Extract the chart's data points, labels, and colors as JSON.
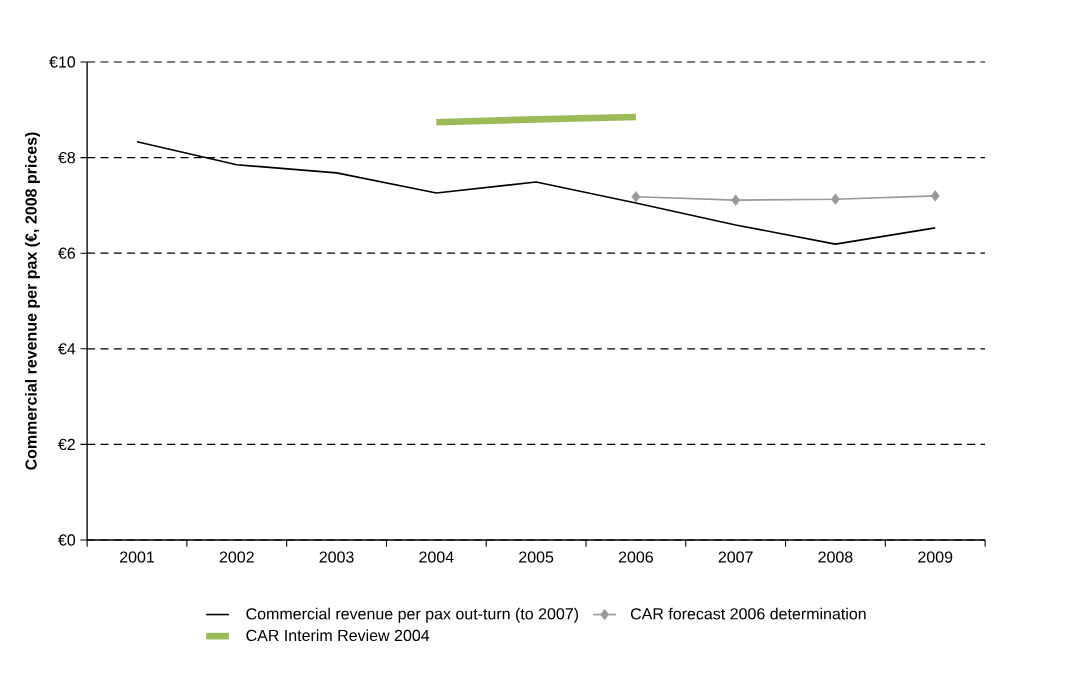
{
  "chart_data": {
    "type": "line",
    "ylabel": "Commercial revenue per pax (€, 2008 prices)",
    "categories": [
      "2001",
      "2002",
      "2003",
      "2004",
      "2005",
      "2006",
      "2007",
      "2008",
      "2009"
    ],
    "series": [
      {
        "name": "Commercial revenue per pax out-turn (to 2007)",
        "color": "#000000",
        "marker": "none",
        "values": [
          8.33,
          7.85,
          7.68,
          7.26,
          7.49,
          7.05,
          6.59,
          6.19,
          6.53
        ]
      },
      {
        "name": "CAR forecast 2006 determination",
        "color": "#999999",
        "marker": "diamond",
        "values": [
          null,
          null,
          null,
          null,
          null,
          7.18,
          7.11,
          7.13,
          7.2
        ]
      },
      {
        "name": "CAR Interim Review 2004",
        "color": "#9bbb59",
        "marker": "none",
        "values": [
          null,
          null,
          null,
          8.74,
          8.8,
          8.85,
          null,
          null,
          null
        ]
      }
    ],
    "ylim": [
      0,
      10
    ],
    "yticks": [
      {
        "value": 0,
        "label": "€0"
      },
      {
        "value": 2,
        "label": "€2"
      },
      {
        "value": 4,
        "label": "€4"
      },
      {
        "value": 6,
        "label": "€6"
      },
      {
        "value": 8,
        "label": "€8"
      },
      {
        "value": 10,
        "label": "€10"
      }
    ],
    "grid": "y",
    "line_style": "solid",
    "legend": "bottom"
  }
}
